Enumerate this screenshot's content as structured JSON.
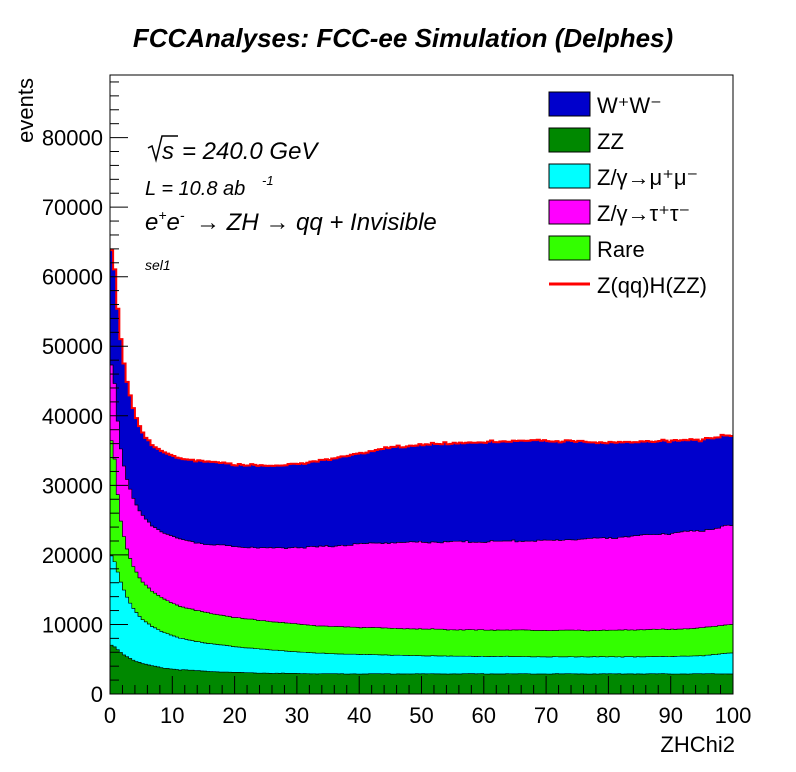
{
  "chart_data": {
    "type": "area",
    "stacked": true,
    "title": "FCCAnalyses: FCC-ee Simulation (Delphes)",
    "xlabel": "ZHChi2",
    "ylabel": "events",
    "xlim": [
      0,
      100
    ],
    "ylim": [
      0,
      89000
    ],
    "xticks": [
      "0",
      "10",
      "20",
      "30",
      "40",
      "50",
      "60",
      "70",
      "80",
      "90",
      "100"
    ],
    "yticks": [
      "0",
      "10000",
      "20000",
      "30000",
      "40000",
      "50000",
      "60000",
      "70000",
      "80000"
    ],
    "annotations": {
      "sqrt_s": "= 240.0 GeV",
      "lumi": "L = 10.8 ab",
      "lumi_exp": "-1",
      "process_arrow": "→ ZH → qq + Invisible",
      "selection": "sel1"
    },
    "x": [
      0.5,
      1.5,
      2.5,
      3.5,
      4.5,
      5.5,
      7,
      9,
      11,
      13,
      15,
      17.5,
      20,
      25,
      30,
      35,
      40,
      45,
      50,
      55,
      60,
      65,
      70,
      75,
      80,
      85,
      90,
      95,
      99.5
    ],
    "series": [
      {
        "name": "ZZ",
        "color": "#008800",
        "values": [
          7000,
          6200,
          5500,
          5000,
          4600,
          4300,
          4000,
          3700,
          3500,
          3400,
          3300,
          3200,
          3100,
          3000,
          2950,
          2900,
          2900,
          2900,
          2900,
          2900,
          2900,
          2900,
          2900,
          2900,
          2900,
          2900,
          2900,
          2900,
          2900
        ]
      },
      {
        "name": "Z/γ→μ⁺μ⁻",
        "color": "#00ffff",
        "values": [
          13000,
          10500,
          8800,
          7600,
          6800,
          6200,
          5600,
          5000,
          4600,
          4300,
          4100,
          3900,
          3700,
          3400,
          3100,
          2900,
          2800,
          2700,
          2600,
          2550,
          2500,
          2500,
          2450,
          2450,
          2450,
          2450,
          2500,
          2600,
          3000
        ]
      },
      {
        "name": "Rare",
        "color": "#33ff00",
        "values": [
          16500,
          9300,
          7200,
          6200,
          5700,
          5300,
          5000,
          4800,
          4600,
          4500,
          4400,
          4300,
          4200,
          4100,
          4000,
          3900,
          3900,
          3850,
          3850,
          3800,
          3800,
          3800,
          3800,
          3800,
          3800,
          3900,
          3900,
          4000,
          4100
        ]
      },
      {
        "name": "Z/γ→τ⁺τ⁻",
        "color": "#ff00ff",
        "values": [
          11000,
          10500,
          10000,
          9800,
          9600,
          9500,
          9500,
          9500,
          9600,
          9700,
          9800,
          10000,
          10200,
          10500,
          11000,
          11500,
          12000,
          12300,
          12500,
          12600,
          12700,
          12800,
          12900,
          13100,
          13300,
          13500,
          13800,
          14000,
          14200
        ]
      },
      {
        "name": "W⁺W⁻",
        "color": "#0000cc",
        "values": [
          16500,
          16000,
          14500,
          13200,
          12300,
          11800,
          11500,
          11600,
          11600,
          11700,
          11800,
          11900,
          11800,
          11800,
          12000,
          12500,
          13000,
          13700,
          14000,
          14200,
          14300,
          14400,
          14400,
          14000,
          13700,
          13500,
          13300,
          13100,
          13000
        ]
      }
    ],
    "signal": {
      "name": "Z(qq)H(ZZ)",
      "color": "#ff0000",
      "values": [
        64000,
        52600,
        46100,
        41900,
        39100,
        37200,
        35700,
        34700,
        33800,
        33400,
        33100,
        33000,
        32900,
        32900,
        33150,
        33800,
        34700,
        35550,
        35950,
        36150,
        36300,
        36500,
        36550,
        36350,
        36250,
        36350,
        36500,
        36700,
        37300
      ]
    },
    "legend": {
      "placement": "top-right",
      "entries": [
        {
          "label": "W⁺W⁻",
          "color": "#0000cc",
          "style": "fill"
        },
        {
          "label": "ZZ",
          "color": "#008800",
          "style": "fill"
        },
        {
          "label": "Z/γ→μ⁺μ⁻",
          "color": "#00ffff",
          "style": "fill"
        },
        {
          "label": "Z/γ→τ⁺τ⁻",
          "color": "#ff00ff",
          "style": "fill"
        },
        {
          "label": "Rare",
          "color": "#33ff00",
          "style": "fill"
        },
        {
          "label": "Z(qq)H(ZZ)",
          "color": "#ff0000",
          "style": "line"
        }
      ]
    },
    "grid": false
  }
}
